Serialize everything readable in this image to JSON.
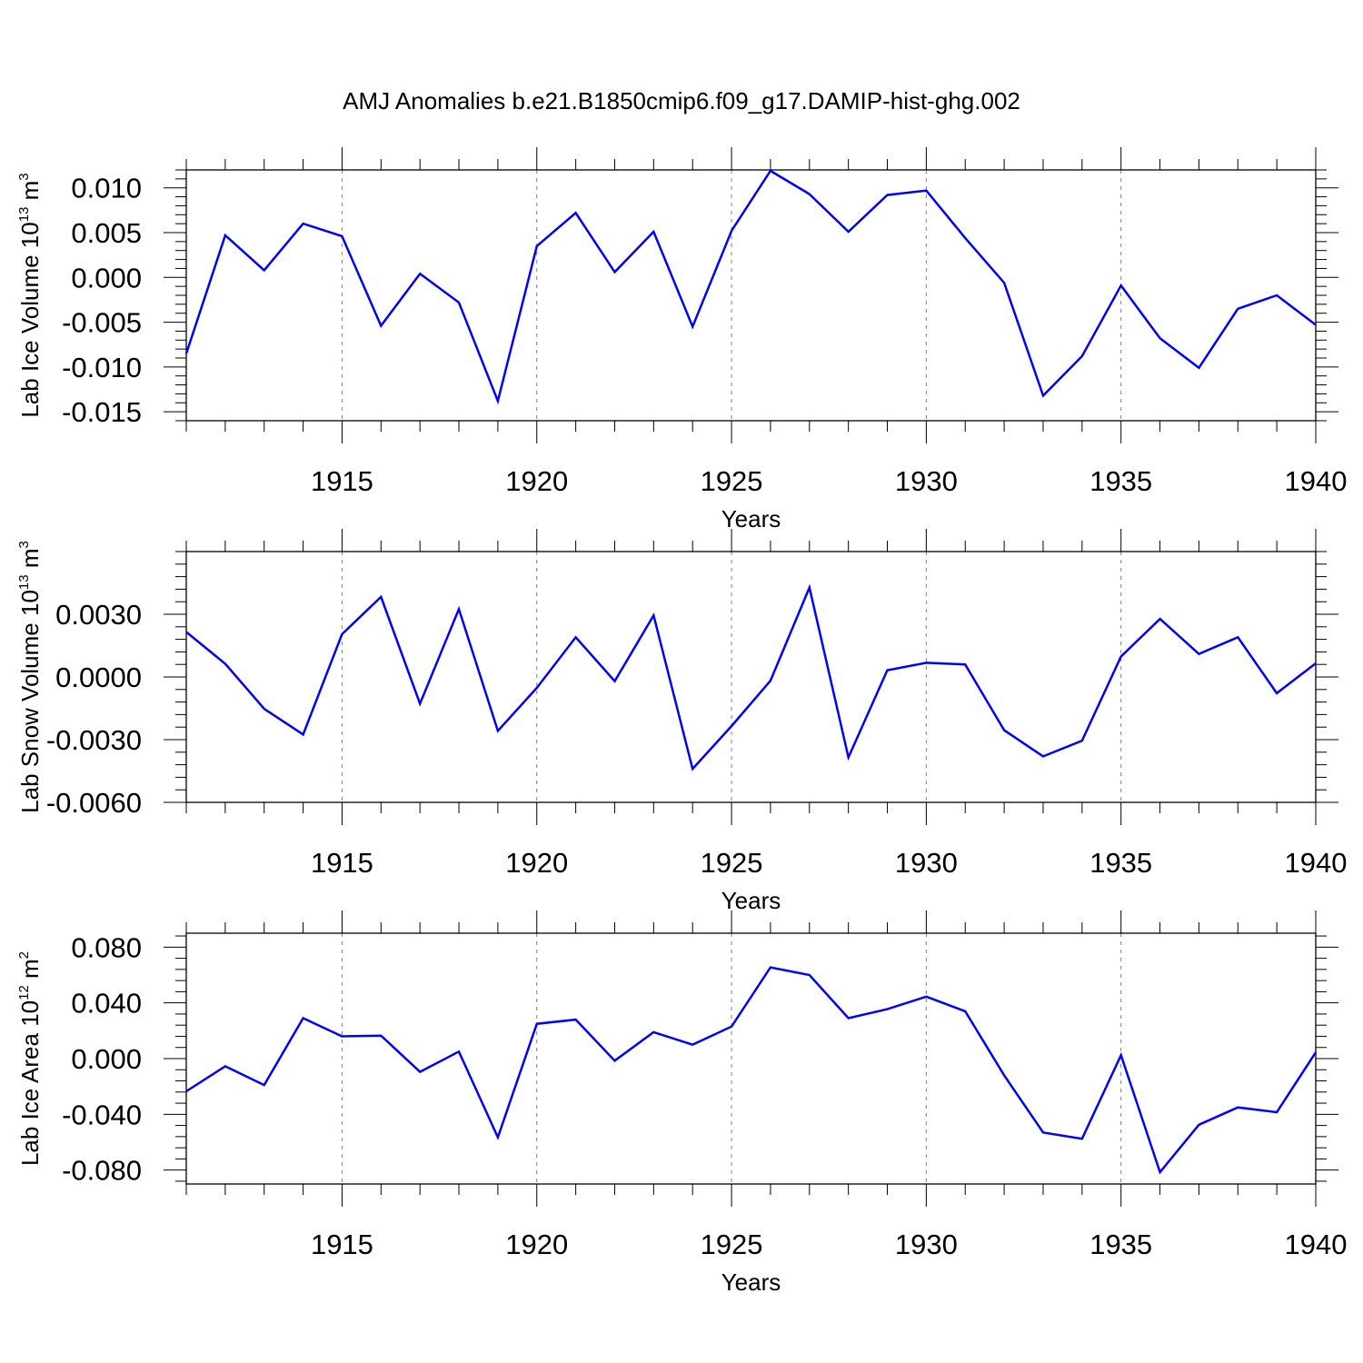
{
  "title": "AMJ Anomalies b.e21.B1850cmip6.f09_g17.DAMIP-hist-ghg.002",
  "colors": {
    "line": "#0000ff",
    "axis": "#000000",
    "grid": "#808080"
  },
  "chart_data": [
    {
      "type": "line",
      "xlabel": "Years",
      "ylabel": {
        "text": "Lab Ice Volume 10",
        "exp": "13",
        "unit": " m",
        "unit_exp": "3"
      },
      "xlim": [
        1911,
        1940
      ],
      "ylim": [
        -0.016,
        0.012
      ],
      "xticks": [
        1915,
        1920,
        1925,
        1930,
        1935,
        1940
      ],
      "yticks": [
        0.01,
        0.005,
        0.0,
        -0.005,
        -0.01,
        -0.015
      ],
      "ytick_labels": [
        "0.010",
        "0.005",
        "0.000",
        "-0.005",
        "-0.010",
        "-0.015"
      ],
      "grid": "vertical dashed at major x ticks",
      "series": [
        {
          "x": [
            1911,
            1912,
            1913,
            1914,
            1915,
            1916,
            1917,
            1918,
            1919,
            1920,
            1921,
            1922,
            1923,
            1924,
            1925,
            1926,
            1927,
            1928,
            1929,
            1930,
            1931,
            1932,
            1933,
            1934,
            1935,
            1936,
            1937,
            1938,
            1939,
            1940
          ],
          "values": [
            -0.0085,
            0.0047,
            0.0008,
            0.006,
            0.0046,
            -0.0054,
            0.0004,
            -0.0028,
            -0.0138,
            0.0035,
            0.0072,
            0.0006,
            0.0051,
            -0.0055,
            0.0052,
            0.0119,
            0.0093,
            0.0051,
            0.0092,
            0.0097,
            0.0044,
            -0.0006,
            -0.0132,
            -0.0088,
            -0.0009,
            -0.0068,
            -0.0101,
            -0.0035,
            -0.002,
            -0.0053
          ]
        }
      ]
    },
    {
      "type": "line",
      "xlabel": "Years",
      "ylabel": {
        "text": "Lab Snow Volume 10",
        "exp": "13",
        "unit": " m",
        "unit_exp": "3"
      },
      "xlim": [
        1911,
        1940
      ],
      "ylim": [
        -0.006,
        0.006
      ],
      "xticks": [
        1915,
        1920,
        1925,
        1930,
        1935,
        1940
      ],
      "yticks": [
        0.003,
        0.0,
        -0.003,
        -0.006
      ],
      "ytick_labels": [
        "0.0030",
        "0.0000",
        "-0.0030",
        "-0.0060"
      ],
      "grid": "vertical dashed at major x ticks",
      "series": [
        {
          "x": [
            1911,
            1912,
            1913,
            1914,
            1915,
            1916,
            1917,
            1918,
            1919,
            1920,
            1921,
            1922,
            1923,
            1924,
            1925,
            1926,
            1927,
            1928,
            1929,
            1930,
            1931,
            1932,
            1933,
            1934,
            1935,
            1936,
            1937,
            1938,
            1939,
            1940
          ],
          "values": [
            0.00215,
            0.00063,
            -0.00152,
            -0.00275,
            0.00205,
            0.00383,
            -0.00128,
            0.00325,
            -0.00258,
            -0.00052,
            0.0019,
            -0.0002,
            0.00295,
            -0.0044,
            -0.00235,
            -0.00018,
            0.00428,
            -0.00385,
            0.00032,
            0.00068,
            0.0006,
            -0.00255,
            -0.0038,
            -0.00305,
            0.00098,
            0.00278,
            0.0011,
            0.0019,
            -0.00078,
            0.00065
          ]
        }
      ]
    },
    {
      "type": "line",
      "xlabel": "Years",
      "ylabel": {
        "text": "Lab Ice Area 10",
        "exp": "12",
        "unit": " m",
        "unit_exp": "2"
      },
      "xlim": [
        1911,
        1940
      ],
      "ylim": [
        -0.09,
        0.09
      ],
      "xticks": [
        1915,
        1920,
        1925,
        1930,
        1935,
        1940
      ],
      "yticks": [
        0.08,
        0.04,
        0.0,
        -0.04,
        -0.08
      ],
      "ytick_labels": [
        "0.080",
        "0.040",
        "0.000",
        "-0.040",
        "-0.080"
      ],
      "grid": "vertical dashed at major x ticks",
      "series": [
        {
          "x": [
            1911,
            1912,
            1913,
            1914,
            1915,
            1916,
            1917,
            1918,
            1919,
            1920,
            1921,
            1922,
            1923,
            1924,
            1925,
            1926,
            1927,
            1928,
            1929,
            1930,
            1931,
            1932,
            1933,
            1934,
            1935,
            1936,
            1937,
            1938,
            1939,
            1940
          ],
          "values": [
            -0.0235,
            -0.0055,
            -0.019,
            0.029,
            0.016,
            0.0165,
            -0.0095,
            0.005,
            -0.0565,
            0.025,
            0.028,
            -0.0015,
            0.019,
            0.01,
            0.023,
            0.0655,
            0.06,
            0.029,
            0.0355,
            0.0445,
            0.034,
            -0.012,
            -0.053,
            -0.0575,
            0.0025,
            -0.0815,
            -0.0475,
            -0.035,
            -0.0385,
            0.0045
          ]
        }
      ]
    }
  ]
}
